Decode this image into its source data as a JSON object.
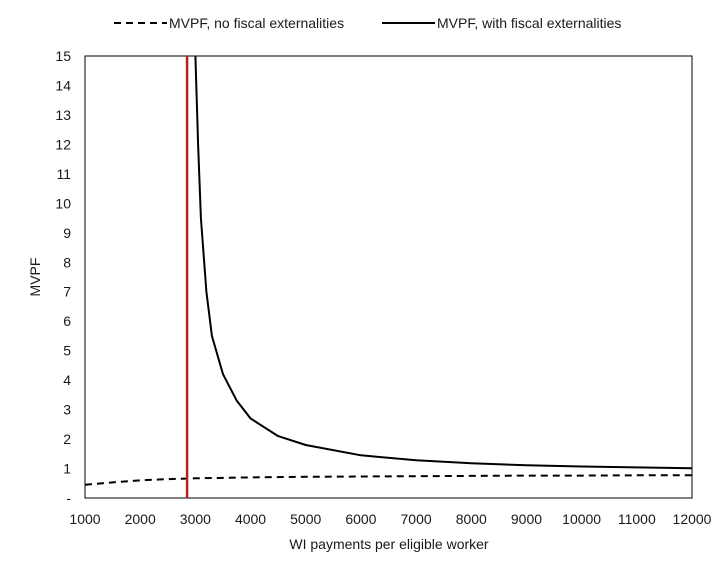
{
  "chart_data": {
    "type": "line",
    "title": "",
    "xlabel": "WI payments per eligible worker",
    "ylabel": "MVPF",
    "xlim": [
      1000,
      12000
    ],
    "ylim": [
      0,
      15
    ],
    "x_ticks": [
      1000,
      2000,
      3000,
      4000,
      5000,
      6000,
      7000,
      8000,
      9000,
      10000,
      11000,
      12000
    ],
    "y_ticks": [
      0,
      1,
      2,
      3,
      4,
      5,
      6,
      7,
      8,
      9,
      10,
      11,
      12,
      13,
      14,
      15
    ],
    "y_tick_labels": [
      "-",
      "1",
      "2",
      "3",
      "4",
      "5",
      "6",
      "7",
      "8",
      "9",
      "10",
      "11",
      "12",
      "13",
      "14",
      "15"
    ],
    "grid": false,
    "legend_position": "top",
    "series": [
      {
        "name": "MVPF, no fiscal externalities",
        "style": "dashed",
        "color": "#000000",
        "x": [
          1000,
          1500,
          2000,
          2500,
          3000,
          4000,
          5000,
          6000,
          7000,
          8000,
          9000,
          10000,
          11000,
          12000
        ],
        "y": [
          0.45,
          0.53,
          0.6,
          0.64,
          0.67,
          0.7,
          0.72,
          0.73,
          0.74,
          0.75,
          0.76,
          0.76,
          0.77,
          0.77
        ]
      },
      {
        "name": "MVPF, with fiscal externalities",
        "style": "solid",
        "color": "#000000",
        "x": [
          3000,
          3050,
          3100,
          3200,
          3300,
          3500,
          3750,
          4000,
          4500,
          5000,
          6000,
          7000,
          8000,
          9000,
          10000,
          11000,
          12000
        ],
        "y": [
          15,
          12.0,
          9.5,
          7.0,
          5.5,
          4.2,
          3.3,
          2.7,
          2.1,
          1.8,
          1.45,
          1.28,
          1.18,
          1.11,
          1.07,
          1.04,
          1.01
        ]
      }
    ],
    "reference_line": {
      "orientation": "vertical",
      "x": 2850,
      "color": "#b22222"
    }
  }
}
